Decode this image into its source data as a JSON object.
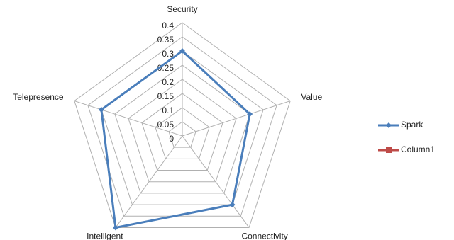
{
  "chart_data": {
    "type": "radar",
    "categories": [
      "Security",
      "Value",
      "Connectivity",
      "Intelligent",
      "Telepresence"
    ],
    "series": [
      {
        "name": "Spark",
        "color": "#4a7ebb",
        "values": [
          0.3,
          0.25,
          0.3,
          0.4,
          0.3
        ]
      },
      {
        "name": "Column1",
        "color": "#be4b48",
        "values": [
          null,
          null,
          null,
          null,
          null
        ]
      }
    ],
    "ylim": [
      0,
      0.4
    ],
    "yticks": [
      0,
      0.05,
      0.1,
      0.15,
      0.2,
      0.25,
      0.3,
      0.35,
      0.4
    ],
    "grid": true,
    "legend": "right"
  }
}
